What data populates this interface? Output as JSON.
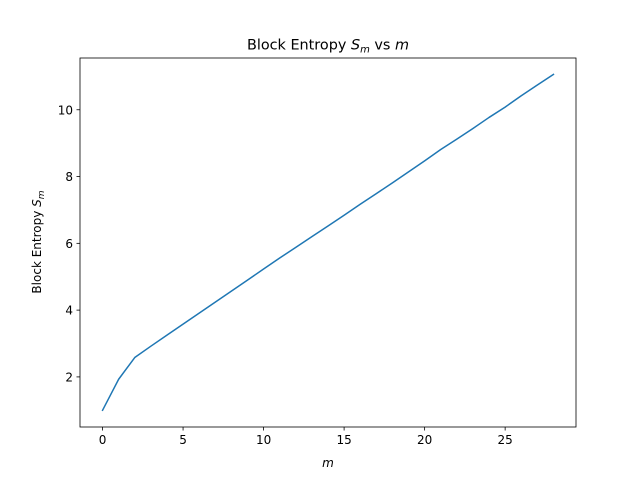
{
  "chart_data": {
    "type": "line",
    "title": {
      "prefix": "Block Entropy ",
      "var": "S",
      "sub": "m",
      "mid": " vs ",
      "var2": "m"
    },
    "xlabel": {
      "var": "m"
    },
    "ylabel": {
      "prefix": "Block Entropy ",
      "var": "S",
      "sub": "m"
    },
    "xlim": [
      -1.4,
      29.4
    ],
    "ylim": [
      0.5,
      11.55
    ],
    "xticks": [
      0,
      5,
      10,
      15,
      20,
      25
    ],
    "yticks": [
      2,
      4,
      6,
      8,
      10
    ],
    "grid": false,
    "line_color": "#1f77b4",
    "series": [
      {
        "x": [
          0,
          1,
          2,
          3,
          4,
          5,
          6,
          7,
          8,
          9,
          10,
          11,
          12,
          13,
          14,
          15,
          16,
          17,
          18,
          19,
          20,
          21,
          22,
          23,
          24,
          25,
          26,
          27,
          28
        ],
        "values": [
          1.0,
          1.93,
          2.58,
          2.92,
          3.25,
          3.58,
          3.91,
          4.24,
          4.57,
          4.9,
          5.23,
          5.56,
          5.88,
          6.2,
          6.52,
          6.84,
          7.17,
          7.49,
          7.81,
          8.14,
          8.47,
          8.81,
          9.12,
          9.44,
          9.77,
          10.08,
          10.42,
          10.74,
          11.06
        ]
      }
    ]
  }
}
